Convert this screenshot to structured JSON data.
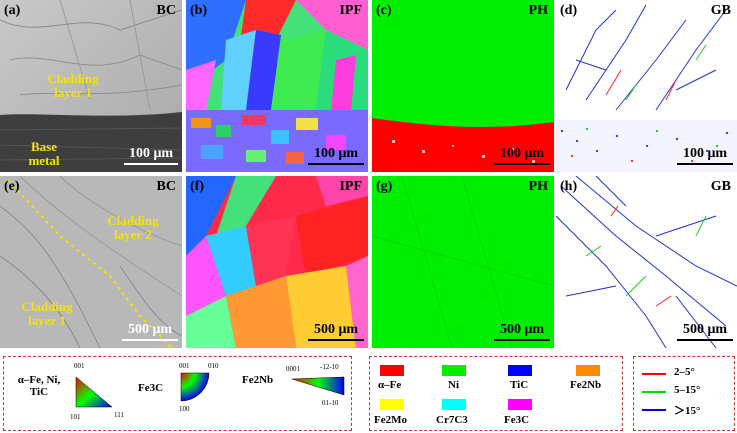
{
  "panels": [
    {
      "label": "(a)",
      "map": "BC"
    },
    {
      "label": "(b)",
      "map": "IPF"
    },
    {
      "label": "(c)",
      "map": "PH"
    },
    {
      "label": "(d)",
      "map": "GB"
    },
    {
      "label": "(e)",
      "map": "BC"
    },
    {
      "label": "(f)",
      "map": "IPF"
    },
    {
      "label": "(g)",
      "map": "PH"
    },
    {
      "label": "(h)",
      "map": "GB"
    }
  ],
  "annotations": {
    "a_cladding_1": "Cladding",
    "a_cladding_2": "layer 1",
    "a_base_1": "Base",
    "a_base_2": "metal",
    "e_cladding2_1": "Cladding",
    "e_cladding2_2": "layer 2",
    "e_cladding1_1": "Cladding",
    "e_cladding1_2": "layer 1"
  },
  "scalebars": {
    "top": "100 μm",
    "bottom": "500 μm"
  },
  "legend_ipf": {
    "phase1_l1": "α–Fe, Ni,",
    "phase1_l2": "TiC",
    "phase2": "Fe3C",
    "phase3": "Fe2Nb",
    "cubic_001": "001",
    "cubic_101": "101",
    "cubic_111": "111",
    "ortho_001": "001",
    "ortho_010": "010",
    "ortho_100": "100",
    "hex_0001": "0001",
    "hex_1210": "-12-10",
    "hex_0110": "01-10"
  },
  "legend_phases": [
    {
      "name": "α–Fe",
      "color": "#ff0000"
    },
    {
      "name": "Ni",
      "color": "#00ee00"
    },
    {
      "name": "TiC",
      "color": "#0000ff"
    },
    {
      "name": "Fe2Nb",
      "color": "#ff8c00"
    },
    {
      "name": "Fe2Mo",
      "color": "#ffff00"
    },
    {
      "name": "Cr7C3",
      "color": "#00ffff"
    },
    {
      "name": "Fe3C",
      "color": "#ff00ff"
    }
  ],
  "legend_gb": [
    {
      "name": "2–5°",
      "color": "#ff0000"
    },
    {
      "name": "5–15°",
      "color": "#00dd00"
    },
    {
      "name": "＞15°",
      "color": "#0000ff"
    }
  ]
}
